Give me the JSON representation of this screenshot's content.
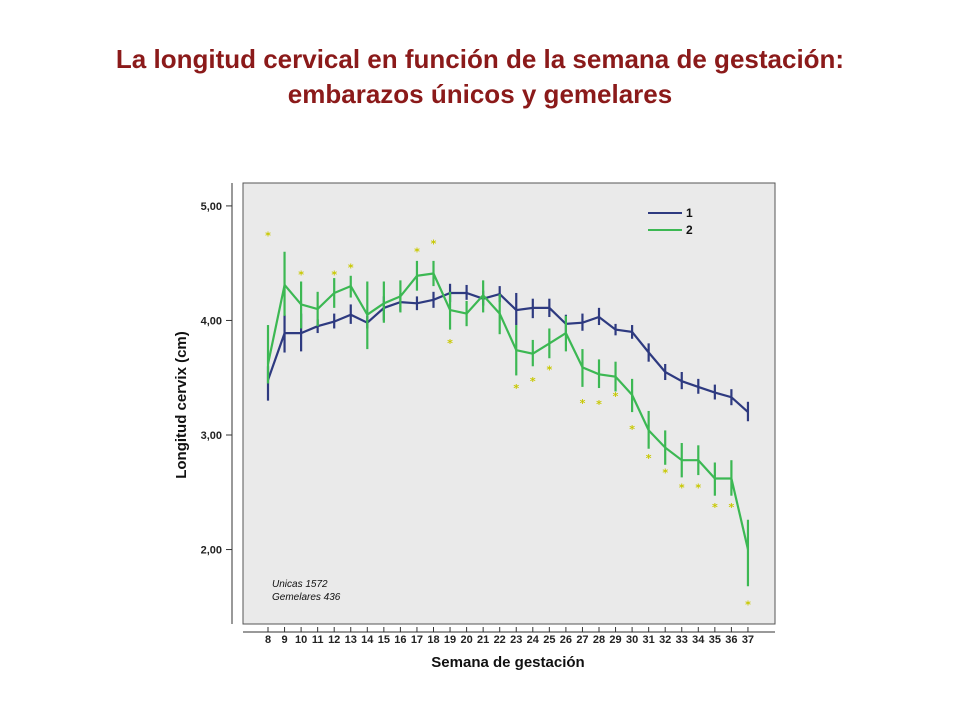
{
  "title": {
    "line1": "La longitud cervical en función de la semana de gestación:",
    "line2": "embarazos únicos y gemelares"
  },
  "chart_data": {
    "type": "line",
    "xlabel": "Semana de gestación",
    "ylabel": "Longitud cervix (cm)",
    "ylim": [
      1.35,
      5.2
    ],
    "yticks": [
      2.0,
      3.0,
      4.0,
      5.0
    ],
    "ytick_labels": [
      "2,00",
      "3,00",
      "4,00",
      "5,00"
    ],
    "categories": [
      "8",
      "9",
      "10",
      "11",
      "12",
      "13",
      "14",
      "15",
      "16",
      "17",
      "18",
      "19",
      "20",
      "21",
      "22",
      "23",
      "24",
      "25",
      "26",
      "27",
      "28",
      "29",
      "30",
      "31",
      "32",
      "33",
      "34",
      "35",
      "36",
      "37"
    ],
    "legend": {
      "position": "top-right",
      "entries": [
        "1",
        "2"
      ]
    },
    "notes": [
      "Unicas 1572",
      "Gemelares 436"
    ],
    "colors": {
      "series1": "#2e3a80",
      "series2": "#3cb853",
      "star": "#c8c800",
      "plot_bg": "#eaeaea",
      "title": "#8b1a1a"
    },
    "series": [
      {
        "name": "1",
        "values": [
          3.48,
          3.89,
          3.89,
          3.95,
          3.99,
          4.05,
          3.98,
          4.11,
          4.16,
          4.15,
          4.18,
          4.24,
          4.24,
          4.19,
          4.23,
          4.09,
          4.11,
          4.11,
          3.97,
          3.98,
          4.03,
          3.92,
          3.9,
          3.72,
          3.55,
          3.47,
          3.42,
          3.37,
          3.33,
          3.2
        ],
        "lower": [
          3.3,
          3.72,
          3.73,
          3.89,
          3.93,
          3.97,
          3.93,
          4.0,
          4.08,
          4.09,
          4.11,
          4.16,
          4.18,
          4.13,
          4.16,
          3.96,
          4.02,
          4.03,
          3.88,
          3.91,
          3.96,
          3.87,
          3.84,
          3.64,
          3.48,
          3.4,
          3.36,
          3.31,
          3.26,
          3.12
        ],
        "upper": [
          3.6,
          4.05,
          4.06,
          4.01,
          4.06,
          4.14,
          4.04,
          4.21,
          4.23,
          4.21,
          4.25,
          4.32,
          4.31,
          4.26,
          4.3,
          4.24,
          4.19,
          4.19,
          4.05,
          4.06,
          4.11,
          3.97,
          3.96,
          3.8,
          3.62,
          3.55,
          3.49,
          3.44,
          3.4,
          3.29
        ]
      },
      {
        "name": "2",
        "values": [
          3.62,
          4.31,
          4.14,
          4.1,
          4.24,
          4.3,
          4.05,
          4.15,
          4.21,
          4.39,
          4.41,
          4.09,
          4.06,
          4.22,
          4.06,
          3.74,
          3.71,
          3.8,
          3.89,
          3.59,
          3.53,
          3.51,
          3.35,
          3.04,
          2.89,
          2.78,
          2.78,
          2.62,
          2.62,
          2.0
        ],
        "lower": [
          3.45,
          4.04,
          3.93,
          3.95,
          4.11,
          4.2,
          3.75,
          3.98,
          4.07,
          4.26,
          4.3,
          3.92,
          3.95,
          4.07,
          3.88,
          3.52,
          3.6,
          3.67,
          3.73,
          3.42,
          3.41,
          3.38,
          3.2,
          2.88,
          2.74,
          2.63,
          2.65,
          2.47,
          2.47,
          1.68
        ],
        "upper": [
          3.96,
          4.6,
          4.34,
          4.25,
          4.37,
          4.39,
          4.34,
          4.34,
          4.35,
          4.52,
          4.52,
          4.25,
          4.17,
          4.35,
          4.23,
          3.96,
          3.83,
          3.93,
          4.04,
          3.75,
          3.66,
          3.64,
          3.49,
          3.21,
          3.04,
          2.93,
          2.91,
          2.76,
          2.78,
          2.26
        ]
      }
    ],
    "outliers": [
      {
        "x": "8",
        "y": 4.75
      },
      {
        "x": "10",
        "y": 4.41
      },
      {
        "x": "12",
        "y": 4.41
      },
      {
        "x": "13",
        "y": 4.47
      },
      {
        "x": "17",
        "y": 4.61
      },
      {
        "x": "18",
        "y": 4.68
      },
      {
        "x": "19",
        "y": 3.81
      },
      {
        "x": "23",
        "y": 3.42
      },
      {
        "x": "24",
        "y": 3.48
      },
      {
        "x": "25",
        "y": 3.58
      },
      {
        "x": "27",
        "y": 3.29
      },
      {
        "x": "28",
        "y": 3.28
      },
      {
        "x": "29",
        "y": 3.35
      },
      {
        "x": "30",
        "y": 3.06
      },
      {
        "x": "31",
        "y": 2.81
      },
      {
        "x": "32",
        "y": 2.68
      },
      {
        "x": "33",
        "y": 2.55
      },
      {
        "x": "34",
        "y": 2.55
      },
      {
        "x": "35",
        "y": 2.38
      },
      {
        "x": "36",
        "y": 2.38
      },
      {
        "x": "37",
        "y": 1.53
      }
    ]
  }
}
